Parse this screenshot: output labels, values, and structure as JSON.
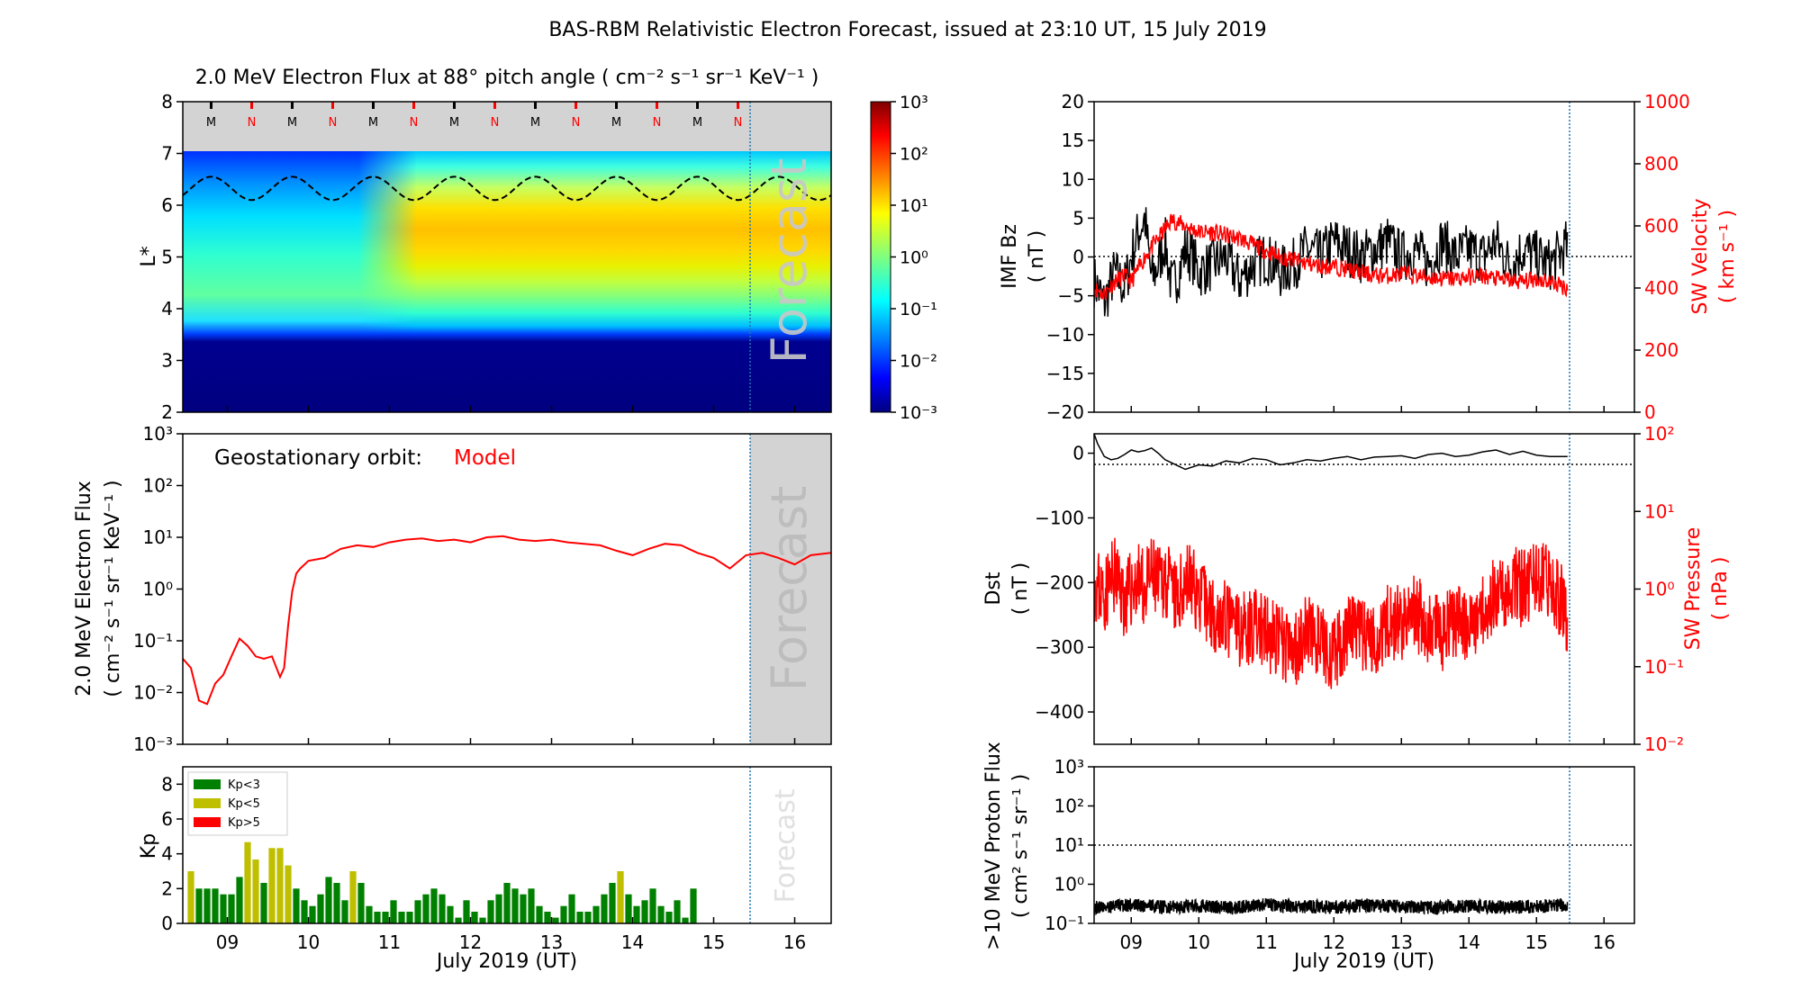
{
  "title": "BAS-RBM Relativistic Electron Forecast, issued at 23:10 UT, 15 July 2019",
  "colors": {
    "model": "#ff0000",
    "obs": "#000000",
    "forecast_shade": "#d3d3d3",
    "kp_low": "#008000",
    "kp_mid": "#bfbf00",
    "kp_high": "#ff0000",
    "divider": "#1f77b4"
  },
  "x_axis": {
    "tick_labels": [
      "09",
      "10",
      "11",
      "12",
      "13",
      "14",
      "15",
      "16"
    ],
    "xlabel": "July 2019 (UT)",
    "xlim_days": [
      8.45,
      16.45
    ],
    "forecast_start_day": 15.46
  },
  "chart_data": [
    {
      "panel": "flux-map",
      "type": "heatmap",
      "title": "2.0 MeV Electron Flux at 88° pitch angle ( cm⁻² s⁻¹ sr⁻¹ KeV⁻¹ )",
      "ylabel": "L*",
      "ylim": [
        2,
        8
      ],
      "yticks": [
        "2",
        "3",
        "4",
        "5",
        "6",
        "7",
        "8"
      ],
      "colorbar": {
        "scale": "log",
        "range": [
          0.001,
          1000
        ],
        "tick_labels": [
          "10⁻³",
          "10⁻²",
          "10⁻¹",
          "10⁰",
          "10¹",
          "10²",
          "10³"
        ],
        "colormap": "jet"
      },
      "forecast_label": "Forecast",
      "midnight_noon_markers": [
        "M",
        "N",
        "M",
        "N",
        "M",
        "N",
        "M",
        "N",
        "M",
        "N",
        "M",
        "N",
        "M",
        "N"
      ],
      "geostationary_L_dashed": {
        "min": 6.1,
        "max": 6.55
      },
      "shaded_region_L": [
        7,
        8
      ]
    },
    {
      "panel": "geo-flux",
      "type": "line",
      "ylabel_line1": "2.0 MeV Electron Flux",
      "ylabel_line2": "( cm⁻² s⁻¹ sr⁻¹ KeV⁻¹ )",
      "yscale": "log",
      "ylim": [
        0.001,
        1000
      ],
      "ytick_labels": [
        "10⁻³",
        "10⁻²",
        "10⁻¹",
        "10⁰",
        "10¹",
        "10²",
        "10³"
      ],
      "annotation_prefix": "Geostationary orbit:",
      "annotation_model": "Model",
      "forecast_label": "Forecast",
      "series": [
        {
          "name": "Model",
          "x": [
            8.45,
            8.55,
            8.65,
            8.75,
            8.85,
            8.95,
            9.05,
            9.15,
            9.25,
            9.35,
            9.45,
            9.55,
            9.65,
            9.7,
            9.75,
            9.8,
            9.85,
            9.9,
            10.0,
            10.2,
            10.4,
            10.6,
            10.8,
            11.0,
            11.2,
            11.4,
            11.6,
            11.8,
            12.0,
            12.2,
            12.4,
            12.6,
            12.8,
            13.0,
            13.2,
            13.4,
            13.6,
            13.8,
            14.0,
            14.2,
            14.4,
            14.6,
            14.8,
            15.0,
            15.2,
            15.4,
            15.6,
            15.8,
            16.0,
            16.2,
            16.45
          ],
          "y": [
            0.045,
            0.03,
            0.007,
            0.006,
            0.015,
            0.022,
            0.05,
            0.11,
            0.08,
            0.05,
            0.045,
            0.05,
            0.02,
            0.03,
            0.2,
            0.9,
            2.0,
            2.5,
            3.5,
            4.0,
            6.0,
            7.0,
            6.5,
            8.0,
            9.0,
            9.5,
            8.5,
            9.0,
            8.0,
            10.0,
            10.5,
            9.0,
            8.5,
            9.0,
            8.0,
            7.5,
            7.0,
            5.5,
            4.5,
            6.0,
            7.5,
            7.0,
            5.0,
            4.0,
            2.5,
            4.5,
            5.0,
            4.0,
            3.0,
            4.5,
            5.0
          ]
        }
      ]
    },
    {
      "panel": "kp",
      "type": "bar",
      "ylabel": "Kp",
      "ylim": [
        0,
        9
      ],
      "ytick_labels": [
        "0",
        "2",
        "4",
        "6",
        "8"
      ],
      "legend": [
        "Kp<3",
        "Kp<5",
        "Kp>5"
      ],
      "legend_position": "top-left",
      "forecast_label": "Forecast",
      "bar_width_days": 0.1,
      "x_start_day": 8.5,
      "values": [
        3,
        2,
        2,
        2,
        1.67,
        1.67,
        2.67,
        4.67,
        3.67,
        2.33,
        4.33,
        4.33,
        3.33,
        2,
        1.33,
        1,
        1.67,
        2.67,
        2.33,
        1.33,
        3,
        2.33,
        1,
        0.67,
        0.67,
        1.33,
        0.67,
        0.67,
        1.33,
        1.67,
        2,
        1.67,
        1,
        0.33,
        1.33,
        0.67,
        0.33,
        1.33,
        1.67,
        2.33,
        2,
        1.67,
        2,
        1,
        0.67,
        0.33,
        1,
        1.67,
        0.67,
        0.67,
        1,
        1.67,
        2.33,
        3,
        1.67,
        1,
        1.33,
        2,
        1,
        0.67,
        1.33,
        0.33,
        2
      ]
    },
    {
      "panel": "imf-bz-sw-velocity",
      "type": "line",
      "ylabel_line1": "IMF Bz",
      "ylabel_line2": "( nT )",
      "ylim": [
        -20,
        20
      ],
      "ytick_labels": [
        "−20",
        "−15",
        "−10",
        "−5",
        "0",
        "5",
        "10",
        "15",
        "20"
      ],
      "y2label_line1": "SW Velocity",
      "y2label_line2": "( km s⁻¹ )",
      "y2lim": [
        0,
        1000
      ],
      "y2tick_labels": [
        "0",
        "200",
        "400",
        "600",
        "800",
        "1000"
      ],
      "series": [
        {
          "name": "IMF Bz",
          "axis": "left",
          "x": [
            8.45,
            8.6,
            8.75,
            8.9,
            9.0,
            9.1,
            9.2,
            9.3,
            9.4,
            9.5,
            9.6,
            9.7,
            9.8,
            9.9,
            10.0,
            10.2,
            10.4,
            10.6,
            10.8,
            11.0,
            11.2,
            11.4,
            11.6,
            11.8,
            12.0,
            12.2,
            12.4,
            12.6,
            12.8,
            13.0,
            13.2,
            13.4,
            13.6,
            13.8,
            14.0,
            14.2,
            14.4,
            14.6,
            14.8,
            15.0,
            15.2,
            15.46
          ],
          "y": [
            -3,
            -6,
            -2,
            -4,
            0,
            3,
            5,
            -3,
            -1,
            2,
            -4,
            -2,
            1,
            0,
            -2,
            -1,
            0,
            -3,
            -1,
            0,
            -2,
            -1,
            1,
            0,
            2,
            1,
            0,
            1,
            2,
            0,
            1,
            -1,
            2,
            0,
            1,
            0,
            2,
            -1,
            1,
            0,
            -1,
            1.5
          ]
        },
        {
          "name": "SW Velocity",
          "axis": "right",
          "x": [
            8.45,
            8.6,
            8.75,
            8.9,
            9.0,
            9.2,
            9.4,
            9.6,
            9.8,
            10.0,
            10.2,
            10.4,
            10.6,
            10.8,
            11.0,
            11.2,
            11.4,
            11.6,
            11.8,
            12.0,
            12.2,
            12.4,
            12.6,
            12.8,
            13.0,
            13.2,
            13.4,
            13.6,
            13.8,
            14.0,
            14.2,
            14.4,
            14.6,
            14.8,
            15.0,
            15.2,
            15.46
          ],
          "y": [
            400,
            380,
            420,
            440,
            420,
            500,
            560,
            620,
            600,
            580,
            580,
            570,
            560,
            540,
            520,
            500,
            490,
            480,
            470,
            470,
            460,
            450,
            440,
            440,
            445,
            440,
            435,
            430,
            430,
            435,
            440,
            430,
            425,
            420,
            430,
            420,
            400
          ]
        }
      ],
      "zero_reference": 0
    },
    {
      "panel": "dst-sw-pressure",
      "type": "line",
      "ylabel_line1": "Dst",
      "ylabel_line2": "( nT )",
      "ylim": [
        -450,
        30
      ],
      "ytick_labels": [
        "−400",
        "−300",
        "−200",
        "−100",
        "0"
      ],
      "y2label_line1": "SW Pressure",
      "y2label_line2": "( nPa )",
      "y2scale": "log",
      "y2lim": [
        0.01,
        100
      ],
      "y2tick_labels": [
        "10⁻²",
        "10⁻¹",
        "10⁰",
        "10¹",
        "10²"
      ],
      "series": [
        {
          "name": "Dst",
          "axis": "left",
          "x": [
            8.45,
            8.5,
            8.6,
            8.7,
            8.8,
            8.9,
            9.0,
            9.1,
            9.2,
            9.3,
            9.4,
            9.5,
            9.6,
            9.7,
            9.8,
            10.0,
            10.2,
            10.4,
            10.6,
            10.8,
            11.0,
            11.2,
            11.4,
            11.6,
            11.8,
            12.0,
            12.2,
            12.4,
            12.6,
            12.8,
            13.0,
            13.2,
            13.4,
            13.6,
            13.8,
            14.0,
            14.2,
            14.4,
            14.6,
            14.8,
            15.0,
            15.2,
            15.46
          ],
          "y": [
            30,
            15,
            -5,
            -10,
            -8,
            -2,
            5,
            2,
            4,
            8,
            0,
            -10,
            -15,
            -20,
            -25,
            -18,
            -20,
            -12,
            -15,
            -8,
            -10,
            -18,
            -15,
            -10,
            -12,
            -8,
            -5,
            -10,
            -6,
            -5,
            -4,
            -8,
            -2,
            0,
            -5,
            -3,
            2,
            5,
            -2,
            3,
            -3,
            -5,
            -5
          ]
        },
        {
          "name": "SW Pressure",
          "axis": "right",
          "x": [
            8.45,
            8.6,
            8.75,
            8.9,
            9.0,
            9.1,
            9.2,
            9.3,
            9.4,
            9.5,
            9.6,
            9.7,
            9.8,
            10.0,
            10.2,
            10.4,
            10.6,
            10.8,
            11.0,
            11.2,
            11.4,
            11.6,
            11.8,
            12.0,
            12.2,
            12.4,
            12.6,
            12.8,
            13.0,
            13.2,
            13.4,
            13.6,
            13.8,
            14.0,
            14.2,
            14.4,
            14.6,
            14.8,
            15.0,
            15.2,
            15.46
          ],
          "y": [
            1.2,
            0.8,
            1.5,
            0.7,
            1.0,
            1.3,
            0.9,
            1.5,
            1.1,
            1.4,
            0.9,
            0.6,
            1.5,
            0.8,
            0.5,
            0.4,
            0.3,
            0.35,
            0.25,
            0.2,
            0.15,
            0.3,
            0.2,
            0.12,
            0.3,
            0.25,
            0.2,
            0.4,
            0.35,
            0.5,
            0.3,
            0.25,
            0.4,
            0.3,
            0.6,
            0.8,
            1.2,
            1.0,
            1.5,
            1.1,
            0.45
          ]
        }
      ],
      "zero_reference": 0
    },
    {
      "panel": "proton-flux",
      "type": "line",
      "ylabel_line1": ">10 MeV Proton Flux",
      "ylabel_line2": "( cm² s⁻¹ sr⁻¹ )",
      "yscale": "log",
      "ylim": [
        0.1,
        1000
      ],
      "ytick_labels": [
        "10⁻¹",
        "10⁰",
        "10¹",
        "10²",
        "10³"
      ],
      "threshold": 10,
      "series": [
        {
          "name": ">10 MeV Proton Flux",
          "x": [
            8.45,
            9.0,
            9.5,
            10.0,
            10.5,
            11.0,
            11.5,
            12.0,
            12.5,
            13.0,
            13.5,
            14.0,
            14.5,
            15.0,
            15.46
          ],
          "y": [
            0.25,
            0.3,
            0.26,
            0.28,
            0.25,
            0.3,
            0.27,
            0.26,
            0.29,
            0.27,
            0.25,
            0.28,
            0.26,
            0.27,
            0.3
          ]
        }
      ]
    }
  ]
}
